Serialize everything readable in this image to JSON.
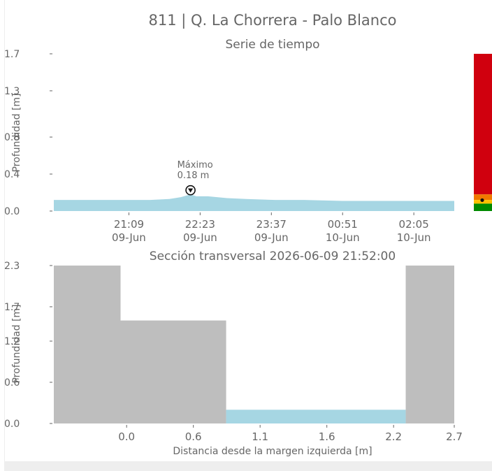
{
  "title": "811 | Q. La Chorrera - Palo Blanco",
  "colors": {
    "water": "#a6d6e3",
    "ground": "#bebebe",
    "text": "#666666",
    "alert_red": "#d0000e",
    "alert_orange": "#f07800",
    "alert_yellow": "#ffc000",
    "alert_green": "#008a00"
  },
  "chart_data": [
    {
      "type": "area",
      "title": "Serie de tiempo",
      "ylabel": "Profundidad [m]",
      "ylim": [
        0,
        1.7
      ],
      "yticks": [
        "0.0",
        "0.4",
        "0.8",
        "1.3",
        "1.7"
      ],
      "ytick_values": [
        0,
        0.4,
        0.8,
        1.3,
        1.7
      ],
      "xlim_minutes": [
        0,
        416
      ],
      "xticks": [
        {
          "t": 78,
          "time": "21:09",
          "date": "09-Jun"
        },
        {
          "t": 152,
          "time": "22:23",
          "date": "09-Jun"
        },
        {
          "t": 226,
          "time": "23:37",
          "date": "09-Jun"
        },
        {
          "t": 300,
          "time": "00:51",
          "date": "10-Jun"
        },
        {
          "t": 374,
          "time": "02:05",
          "date": "10-Jun"
        }
      ],
      "series": [
        {
          "t": [
            0,
            60,
            100,
            120,
            132,
            142,
            148,
            160,
            180,
            200,
            230,
            260,
            300,
            350,
            400,
            416
          ],
          "values": [
            0.12,
            0.12,
            0.12,
            0.13,
            0.15,
            0.18,
            0.16,
            0.16,
            0.14,
            0.13,
            0.12,
            0.12,
            0.11,
            0.11,
            0.11,
            0.11
          ]
        }
      ],
      "annotation": {
        "label": "Máximo",
        "value_text": "0.18 m",
        "t": 142,
        "value": 0.18
      },
      "alert_bar": {
        "levels": [
          {
            "color": "#d0000e",
            "from": 0.18,
            "to": 1.7
          },
          {
            "color": "#f07800",
            "from": 0.12,
            "to": 0.18
          },
          {
            "color": "#ffc000",
            "from": 0.08,
            "to": 0.12
          },
          {
            "color": "#008a00",
            "from": 0.0,
            "to": 0.08
          }
        ],
        "marker_value": 0.11
      }
    },
    {
      "type": "area",
      "title": "Sección transversal 2026-06-09 21:52:00",
      "ylabel": "Profundidad [m]",
      "xlabel": "Distancia desde la margen izquierda [m]",
      "ylim": [
        0,
        2.3
      ],
      "yticks": [
        "0.0",
        "0.6",
        "1.2",
        "1.7",
        "2.3"
      ],
      "ytick_values": [
        0,
        0.6,
        1.2,
        1.7,
        2.3
      ],
      "xlim": [
        -0.6,
        2.7
      ],
      "xticks": [
        "0.0",
        "0.6",
        "1.1",
        "1.6",
        "2.2",
        "2.7"
      ],
      "xtick_values": [
        0.0,
        0.55,
        1.1,
        1.65,
        2.2,
        2.75
      ],
      "ground": [
        {
          "x0": -0.6,
          "x1": -0.05,
          "top": 2.32
        },
        {
          "x0": -0.05,
          "x1": 0.82,
          "top": 1.5
        },
        {
          "x0": 2.3,
          "x1": 2.85,
          "top": 2.35
        }
      ],
      "water": {
        "x0": 0.82,
        "x1": 2.3,
        "level": 0.2
      }
    }
  ]
}
